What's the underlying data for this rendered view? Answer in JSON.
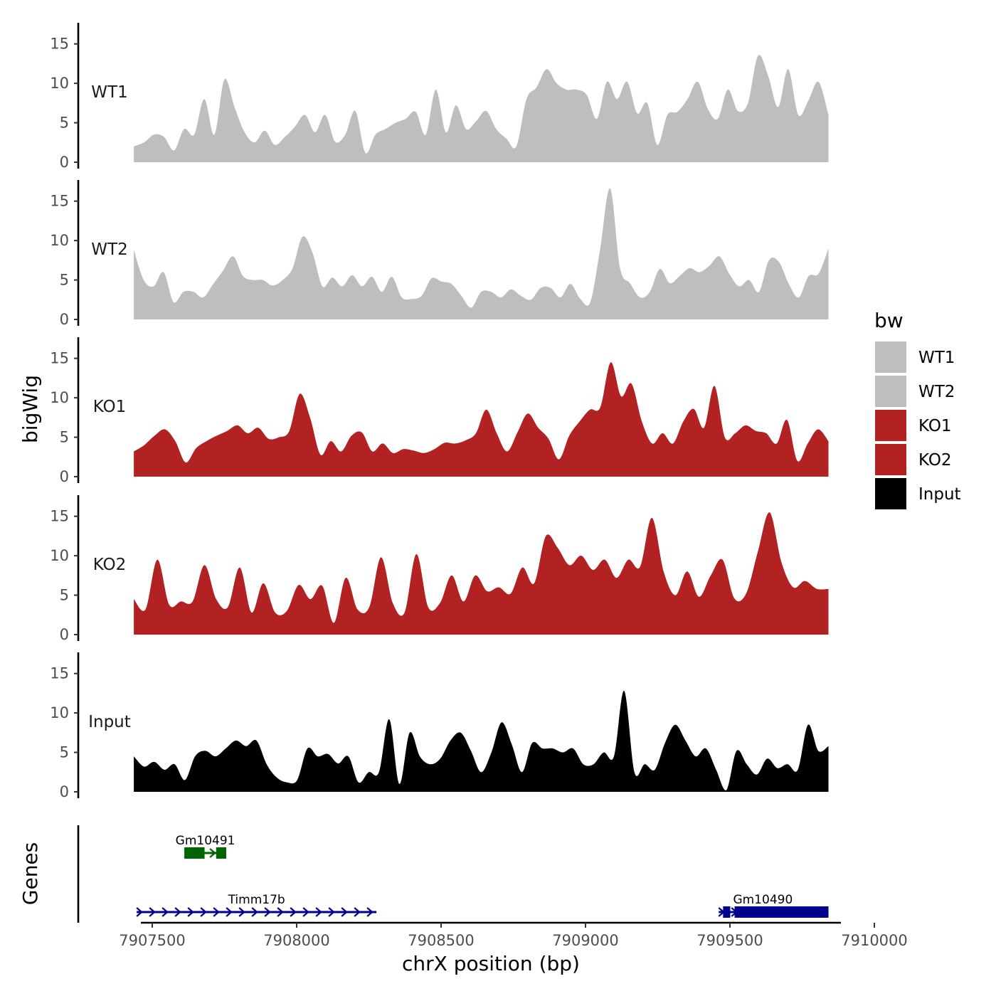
{
  "chart_data": {
    "type": "area",
    "ylabel": "bigWig",
    "xlabel": "chrX position (bp)",
    "xlim": [
      7907500,
      7910000
    ],
    "ylim": [
      0,
      17.5
    ],
    "y_ticks": [
      0,
      5,
      10,
      15
    ],
    "x_ticks": [
      7907500,
      7908000,
      7908500,
      7909000,
      7909500,
      7910000
    ],
    "x_tick_labels": [
      "7907500",
      "7908000",
      "7908500",
      "7909000",
      "7909500",
      "7910000"
    ],
    "x_range": [
      7907515,
      7909920
    ],
    "legend": {
      "title": "bw",
      "placement": "right",
      "entries": [
        {
          "label": "WT1",
          "color": "#bebebe"
        },
        {
          "label": "WT2",
          "color": "#bebebe"
        },
        {
          "label": "KO1",
          "color": "#b22222"
        },
        {
          "label": "KO2",
          "color": "#b22222"
        },
        {
          "label": "Input",
          "color": "#000000"
        }
      ]
    },
    "series": [
      {
        "name": "WT1",
        "color": "#bebebe",
        "values": [
          2,
          2.5,
          3.5,
          3.2,
          1.5,
          4.2,
          3.5,
          8,
          3.5,
          10.5,
          7,
          3.8,
          2.5,
          4,
          2.2,
          3.2,
          4.5,
          6,
          3.8,
          6,
          2.6,
          3.5,
          6.5,
          1.2,
          3.5,
          4.2,
          5,
          5.5,
          6.4,
          3.5,
          9.2,
          3.8,
          7.2,
          4.2,
          5.2,
          6.5,
          4.2,
          3,
          2,
          8,
          9.5,
          11.8,
          10,
          9.2,
          9.2,
          8.5,
          5.5,
          10.2,
          8,
          10.2,
          6.2,
          7.5,
          2.2,
          6,
          6.4,
          8,
          10.2,
          6.8,
          5.5,
          9.2,
          6.5,
          7.5,
          13.5,
          11,
          7,
          11.8,
          6,
          7.8,
          10.2,
          6
        ]
      },
      {
        "name": "WT2",
        "color": "#bebebe",
        "values": [
          8.8,
          5,
          4.2,
          6,
          2.2,
          3.5,
          3.5,
          2.8,
          4.5,
          6.2,
          8,
          5.5,
          5,
          5,
          4.3,
          5,
          6.5,
          10.5,
          8.5,
          4.2,
          5.3,
          4.2,
          5.6,
          4.2,
          5.4,
          3.5,
          5.4,
          2.8,
          2.6,
          3,
          5.2,
          4.8,
          4.5,
          3,
          1.5,
          3.5,
          3.5,
          2.8,
          3.8,
          3,
          2.5,
          4,
          4,
          2.8,
          4.5,
          2.6,
          2.2,
          9,
          16.6,
          6.5,
          4.6,
          2.8,
          3.5,
          6.4,
          4.6,
          5.5,
          6.5,
          6,
          6.8,
          8,
          5.8,
          4.2,
          5,
          3.5,
          7.5,
          7.3,
          4.5,
          2.8,
          5.5,
          5.8,
          9
        ]
      },
      {
        "name": "KO1",
        "color": "#b22222",
        "values": [
          3.2,
          4,
          5.2,
          6,
          4.5,
          1.8,
          3.6,
          4.5,
          5.2,
          5.8,
          6.5,
          5.5,
          6.2,
          4.8,
          5,
          5.8,
          10.5,
          7.5,
          2.8,
          4.5,
          3.2,
          5.2,
          5.6,
          3.2,
          4.2,
          3,
          3.5,
          3.3,
          3,
          3.5,
          4.3,
          4.2,
          4.6,
          5.5,
          8.5,
          5.5,
          3.2,
          5.6,
          8,
          6.2,
          4.8,
          2.2,
          5.2,
          7,
          8.5,
          8.8,
          14.5,
          10.2,
          11.8,
          7,
          4.2,
          5.5,
          4.2,
          7,
          8.6,
          6.2,
          11.5,
          5,
          5.5,
          6.5,
          5.8,
          5.5,
          4.2,
          7.2,
          2,
          4.2,
          6,
          4.5
        ]
      },
      {
        "name": "KO2",
        "color": "#b22222",
        "values": [
          4.5,
          3.2,
          9.5,
          3.8,
          4.2,
          4.2,
          8.8,
          4.5,
          3.5,
          8.5,
          2.8,
          6.5,
          2.8,
          3,
          6.3,
          4.5,
          6.2,
          1.5,
          7.2,
          3.2,
          3.5,
          9.8,
          4,
          2.8,
          10.2,
          3.5,
          4,
          7.5,
          4.2,
          7.5,
          5.5,
          6,
          5.2,
          8.5,
          6.5,
          12.5,
          11,
          8.8,
          10,
          8.2,
          9.5,
          7.2,
          9.5,
          8.6,
          14.8,
          8,
          5,
          8,
          4.8,
          7.5,
          9.5,
          4.6,
          5.2,
          10.5,
          15.5,
          9.2,
          6,
          6.8,
          5.8,
          5.8
        ]
      },
      {
        "name": "Input",
        "color": "#000000",
        "values": [
          4.5,
          3.2,
          3.8,
          2.8,
          3.5,
          1.5,
          4.5,
          5.2,
          4.5,
          5.5,
          6.5,
          5.8,
          6.5,
          3.5,
          1.8,
          1.2,
          1.5,
          5.5,
          4.5,
          4.8,
          3.6,
          4.5,
          1.2,
          2.5,
          2.5,
          9.2,
          1,
          7.5,
          4.5,
          3.5,
          4.2,
          6.5,
          7.5,
          5.2,
          2.5,
          5,
          8.8,
          6,
          2.5,
          6.2,
          5.5,
          5.5,
          5,
          5.5,
          3.5,
          3.5,
          5,
          4.5,
          12.8,
          2.5,
          3.5,
          2.8,
          6.2,
          8.5,
          6.5,
          4.5,
          5.5,
          2.8,
          0.2,
          5.2,
          3.5,
          2.2,
          4.2,
          3,
          3.5,
          2.8,
          8.5,
          5.2,
          5.8
        ]
      }
    ],
    "genes_track": {
      "label": "Genes",
      "genes": [
        {
          "name": "Gm10491",
          "color": "#006400",
          "start": 7907690,
          "end": 7907835,
          "strand": "+",
          "row": 0,
          "exons": [
            [
              7907690,
              7907760
            ],
            [
              7907800,
              7907835
            ]
          ]
        },
        {
          "name": "Timm17b",
          "color": "#00008b",
          "start": 7907525,
          "end": 7908355,
          "strand": "+",
          "row": 1,
          "exons": []
        },
        {
          "name": "Gm10490",
          "color": "#00008b",
          "start": 7909540,
          "end": 7909920,
          "strand": "+",
          "row": 1,
          "exons": [
            [
              7909555,
              7909580
            ],
            [
              7909595,
              7909920
            ]
          ]
        }
      ]
    }
  }
}
